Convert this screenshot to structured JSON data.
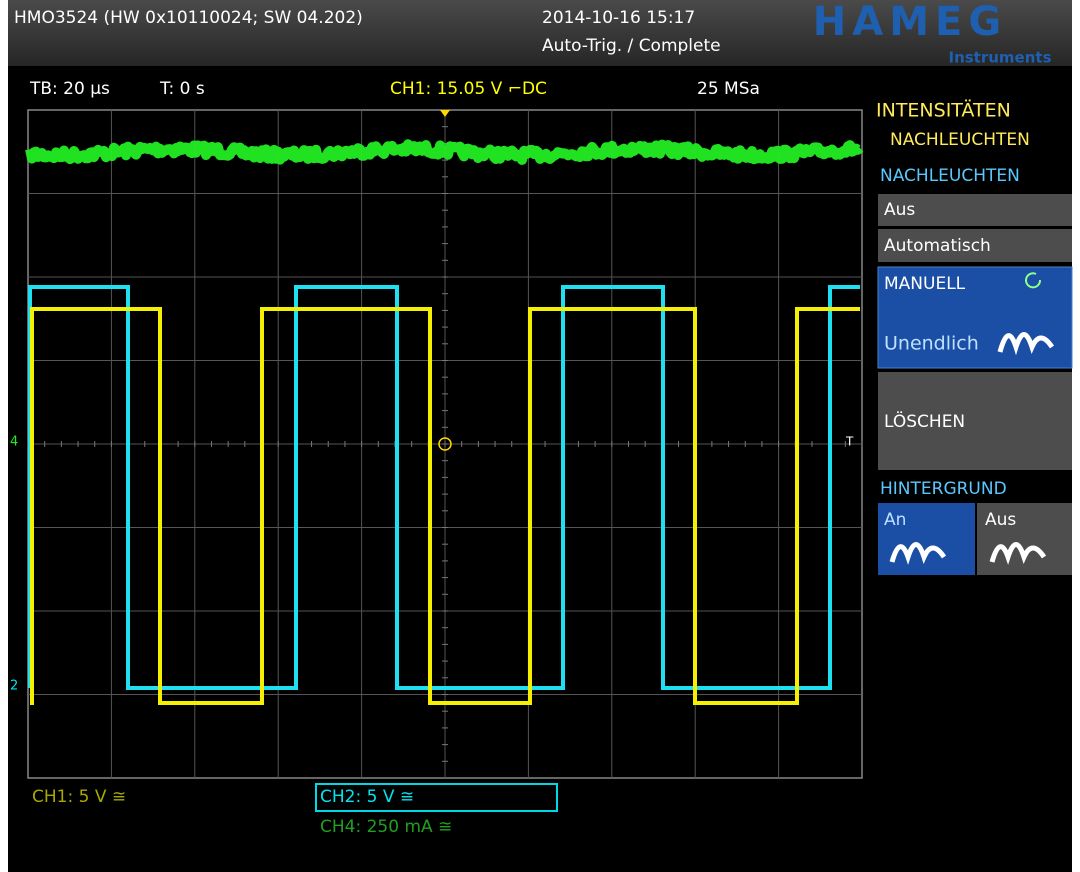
{
  "header": {
    "device": "HMO3524 (HW 0x10110024; SW 04.202)",
    "datetime": "2014-10-16 15:17",
    "status": "Auto-Trig. / Complete",
    "logo": "HAMEG",
    "logo_sub": "Instruments"
  },
  "status_bar": {
    "timebase": "TB: 20 µs",
    "trigger_time": "T: 0 s",
    "trigger": "CH1: 15.05 V ⌐DC",
    "sample_rate": "25 MSa"
  },
  "menu": {
    "title": "INTENSITÄTEN",
    "subtitle": "NACHLEUCHTEN",
    "section1": "NACHLEUCHTEN",
    "options": [
      "Aus",
      "Automatisch"
    ],
    "manual": "MANUELL",
    "manual_value": "Unendlich",
    "clear": "LÖSCHEN",
    "section2": "HINTERGRUND",
    "bg_on": "An",
    "bg_off": "Aus"
  },
  "channels": {
    "ch1": "CH1: 5 V ≅",
    "ch2": "CH2: 5 V ≅",
    "ch4": "CH4: 250 mA ≅"
  },
  "markers": {
    "ch4": "4",
    "ch2": "2",
    "trigger": "T"
  }
}
